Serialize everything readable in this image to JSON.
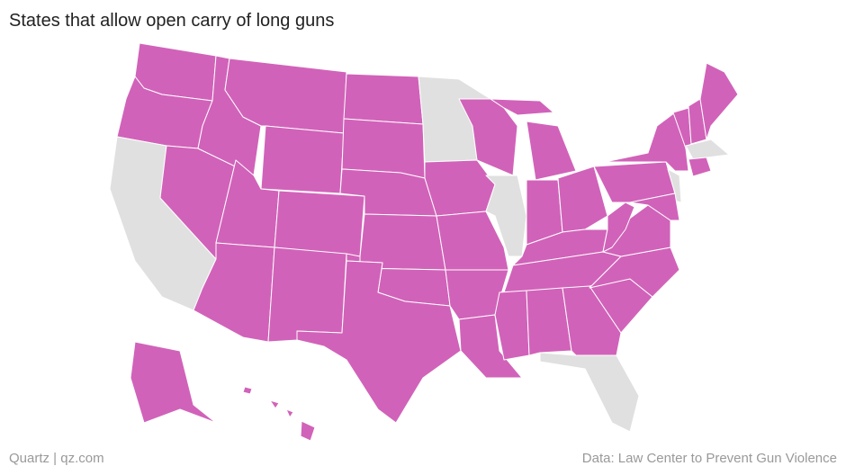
{
  "header": {
    "title": "States that allow open carry of long guns"
  },
  "footer": {
    "credit": "Quartz | qz.com",
    "source": "Data: Law Center to Prevent Gun Violence"
  }
}
